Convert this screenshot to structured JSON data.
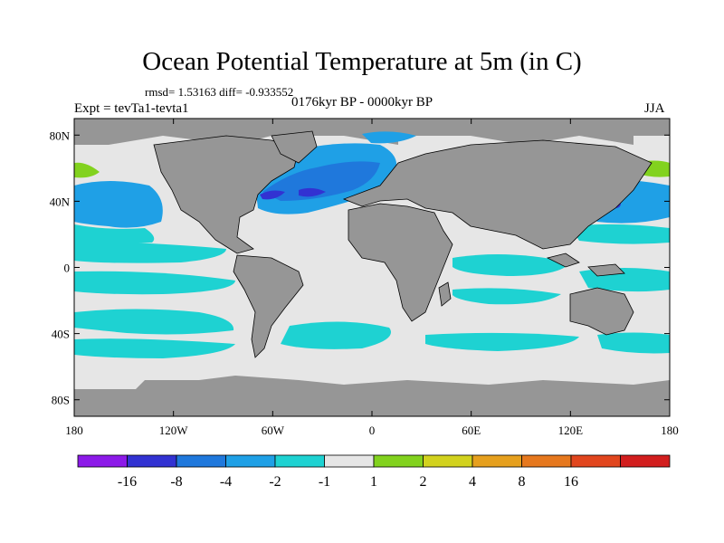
{
  "title": "Ocean Potential Temperature at 5m (in C)",
  "stats": "rmsd= 1.53163 diff= -0.933552",
  "expt": "Expt = tevTa1-tevta1",
  "period": "0176kyr BP - 0000kyr BP",
  "season": "JJA",
  "axes": {
    "lat_ticks": [
      {
        "label": "80N",
        "lat": 80
      },
      {
        "label": "40N",
        "lat": 40
      },
      {
        "label": "0",
        "lat": 0
      },
      {
        "label": "40S",
        "lat": -40
      },
      {
        "label": "80S",
        "lat": -80
      }
    ],
    "lon_ticks": [
      {
        "label": "180",
        "lon": -180
      },
      {
        "label": "120W",
        "lon": -120
      },
      {
        "label": "60W",
        "lon": -60
      },
      {
        "label": "0",
        "lon": 0
      },
      {
        "label": "60E",
        "lon": 60
      },
      {
        "label": "120E",
        "lon": 120
      },
      {
        "label": "180",
        "lon": 180
      }
    ]
  },
  "colorbar": {
    "colors": [
      "#8c1ae8",
      "#3232d2",
      "#1f78dc",
      "#1fa0e6",
      "#1ed2d2",
      "#e6e6e6",
      "#82d21e",
      "#d2d21e",
      "#e6a01e",
      "#e6781e",
      "#e1461e",
      "#d21e1e"
    ],
    "labels": [
      "-16",
      "-8",
      "-4",
      "-2",
      "-1",
      "1",
      "2",
      "4",
      "8",
      "16"
    ]
  },
  "colors": {
    "land": "#969696",
    "missing": "#969696",
    "coast": "#000000"
  }
}
